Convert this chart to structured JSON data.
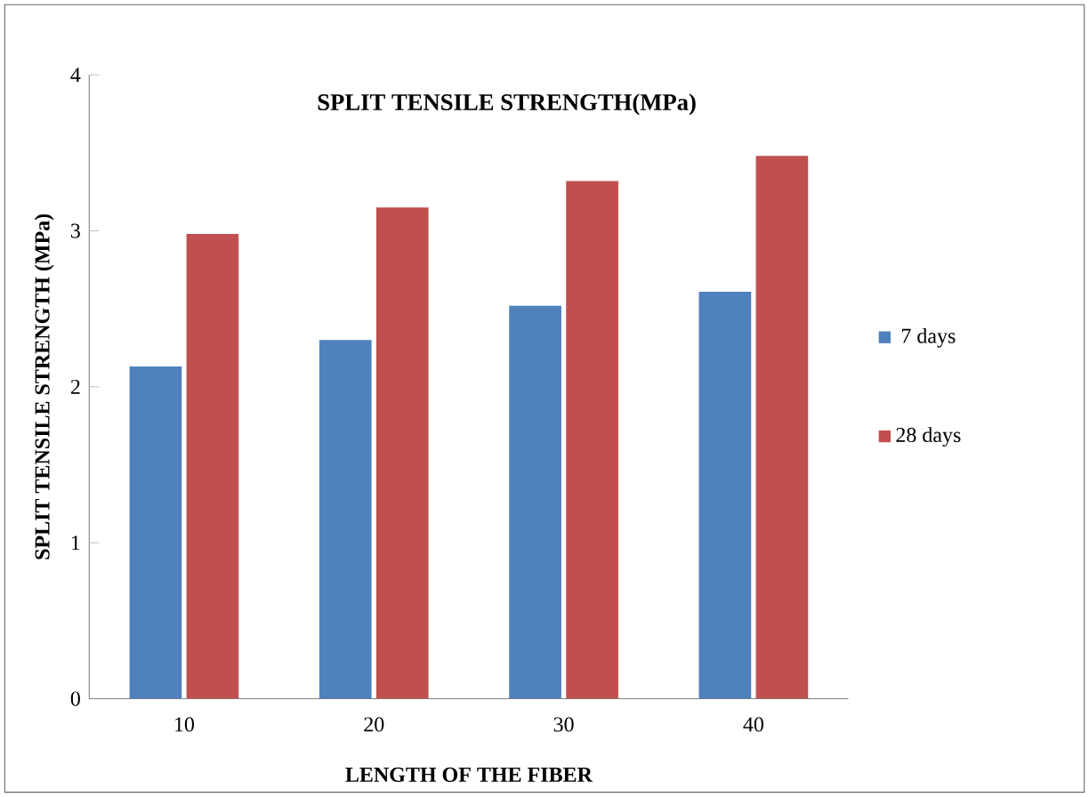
{
  "chart_data": {
    "type": "bar",
    "title": "SPLIT TENSILE STRENGTH(MPa)",
    "xlabel": "LENGTH OF THE FIBER",
    "ylabel": "SPLIT TENSILE STRENGTH (MPa)",
    "categories": [
      "10",
      "20",
      "30",
      "40"
    ],
    "series": [
      {
        "name": "7 days",
        "color": "#4f81bd",
        "values": [
          2.13,
          2.3,
          2.52,
          2.61
        ]
      },
      {
        "name": "28 days",
        "color": "#c0504d",
        "values": [
          2.98,
          3.15,
          3.32,
          3.48
        ]
      }
    ],
    "ylim": [
      0,
      4
    ],
    "yticks": [
      0,
      1,
      2,
      3,
      4
    ],
    "grid": false,
    "legend": "right"
  }
}
